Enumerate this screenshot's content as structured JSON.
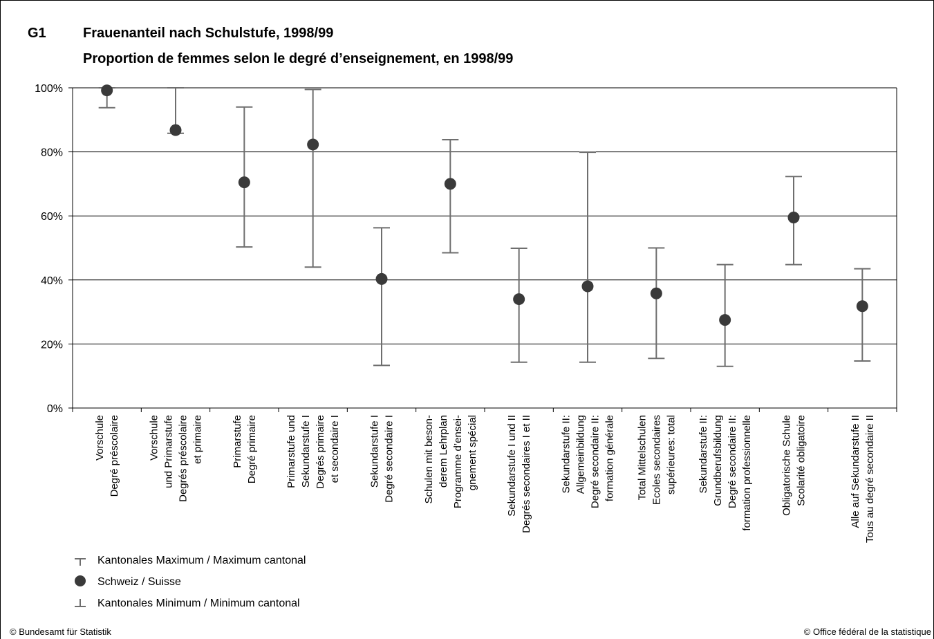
{
  "figure": {
    "number": "G1",
    "title_de": "Frauenanteil nach Schulstufe, 1998/99",
    "title_fr": "Proportion de femmes selon le degré d’enseignement, en 1998/99"
  },
  "footer": {
    "left": "© Bundesamt für Statistik",
    "right": "© Office fédéral de la statistique"
  },
  "legend": {
    "max": "Kantonales Maximum / Maximum cantonal",
    "point": "Schweiz / Suisse",
    "min": "Kantonales Minimum / Minimum cantonal"
  },
  "colors": {
    "marker": "#3a3a3a",
    "whisker": "#6e6e6e",
    "grid": "#000000"
  },
  "chart_data": {
    "type": "scatter",
    "y_ticks": [
      "0%",
      "20%",
      "40%",
      "60%",
      "80%",
      "100%"
    ],
    "ylim": [
      0,
      100
    ],
    "grid": true,
    "legend_position": "bottom-left",
    "categories": [
      [
        "Vorschule",
        "Degré préscolaire"
      ],
      [
        "Vorschule",
        "und Primarstufe",
        "Degrés préscolaire",
        "et primaire"
      ],
      [
        "Primarstufe",
        "Degré primaire"
      ],
      [
        "Primarstufe und",
        "Sekundarstufe I",
        "Degrés primaire",
        "et secondaire I"
      ],
      [
        "Sekundarstufe I",
        "Degré secondaire I"
      ],
      [
        "Schulen mit beson-",
        "derem Lehrplan",
        "Programme d’ensei-",
        "gnement spécial"
      ],
      [
        "Sekundarstufe I und II",
        "Degrés secondaires I et II"
      ],
      [
        "Sekundarstufe II:",
        "Allgemeinbildung",
        "Degré secondaire II:",
        "formation générale"
      ],
      [
        "Total Mittelschulen",
        "Ecoles secondaires",
        "supérieures: total"
      ],
      [
        "Sekundarstufe II:",
        "Grundberufsbildung",
        "Degré secondaire II:",
        "formation professionnelle"
      ],
      [
        "Obligatorische Schule",
        "Scolarité obligatoire"
      ],
      [
        "Alle auf Sekundarstufe II",
        "Tous au degré secondaire II"
      ]
    ],
    "series": [
      {
        "name": "Schweiz / Suisse",
        "values": [
          99.2,
          86.8,
          70.5,
          82.3,
          40.3,
          70.0,
          34.0,
          38.0,
          35.8,
          27.5,
          59.5,
          31.8
        ]
      },
      {
        "name": "Kantonales Maximum / Maximum cantonal",
        "values": [
          100,
          100,
          94,
          99.5,
          56.3,
          83.8,
          49.9,
          79.9,
          50.0,
          44.8,
          72.3,
          43.5
        ]
      },
      {
        "name": "Kantonales Minimum / Minimum cantonal",
        "values": [
          93.8,
          85.8,
          50.3,
          44.0,
          13.3,
          48.5,
          14.3,
          14.3,
          15.5,
          13.0,
          44.8,
          14.7
        ]
      }
    ]
  }
}
